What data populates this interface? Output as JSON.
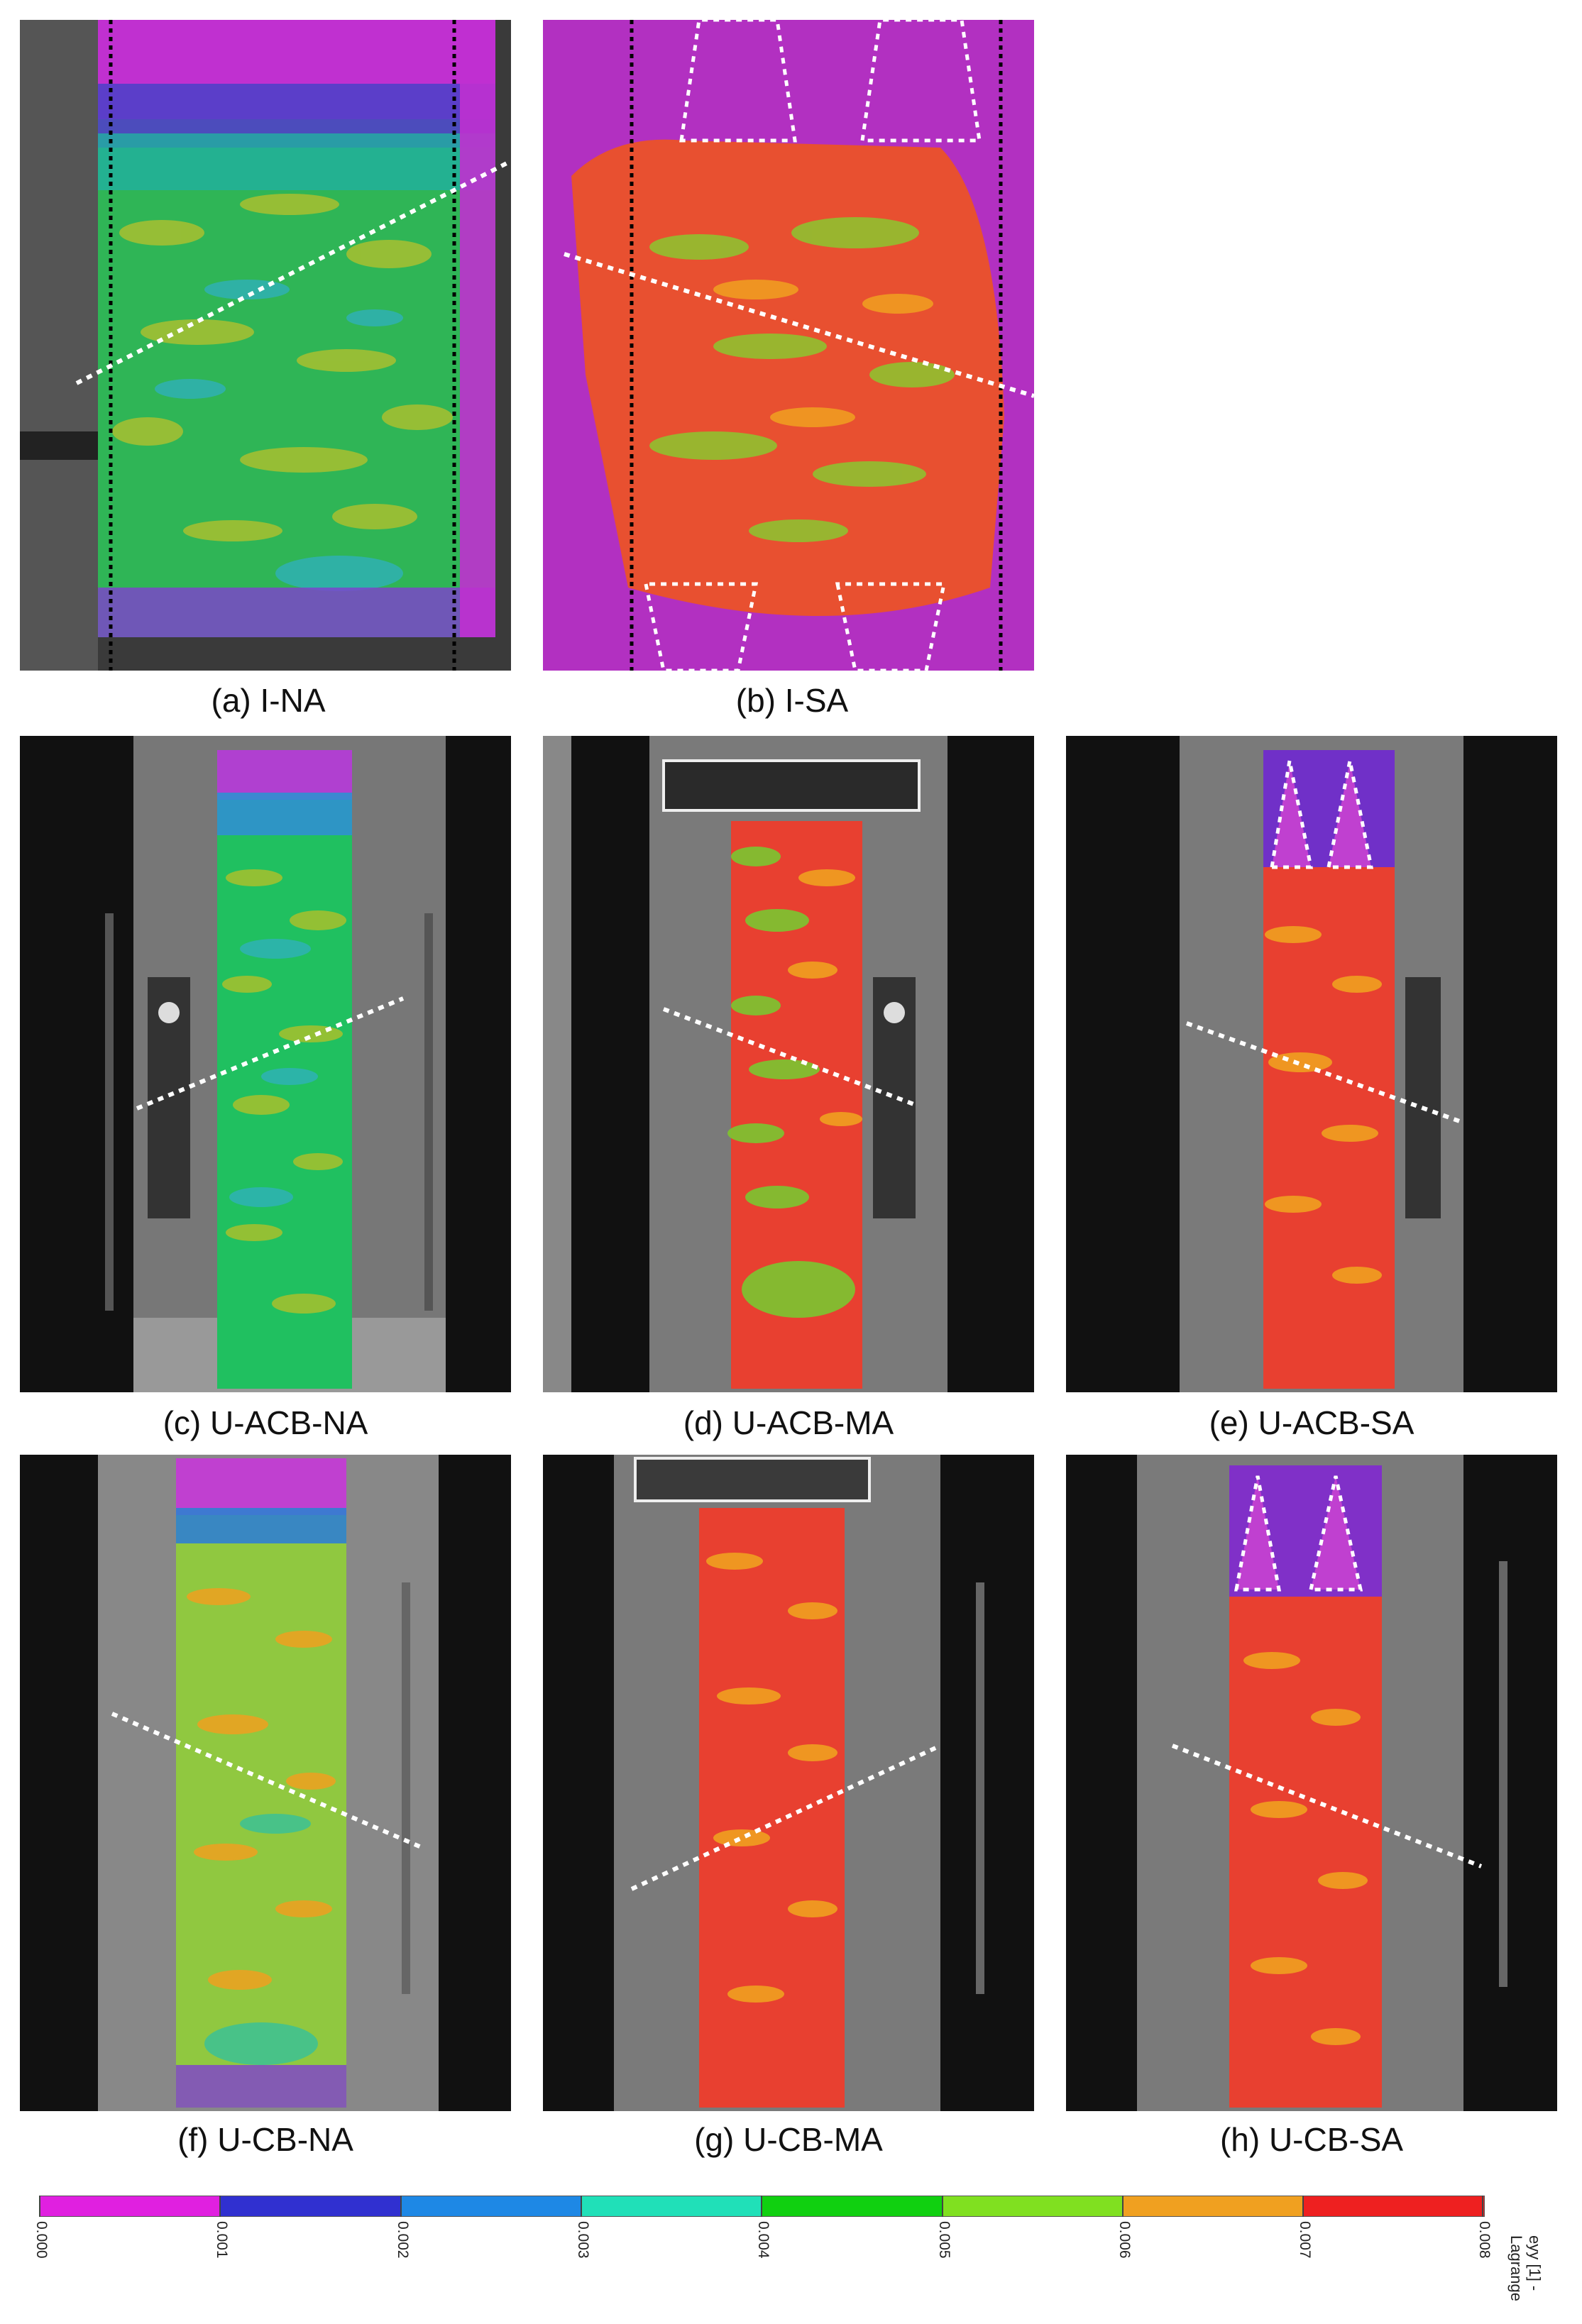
{
  "captions": {
    "a": "(a) I-NA",
    "b": "(b) I-SA",
    "c": "(c) U-ACB-NA",
    "d": "(d) U-ACB-MA",
    "e": "(e) U-ACB-SA",
    "f": "(f) U-CB-NA",
    "g": "(g) U-CB-MA",
    "h": "(h) U-CB-SA"
  },
  "colorbar": {
    "ticks": [
      "0.000",
      "0.001",
      "0.002",
      "0.003",
      "0.004",
      "0.005",
      "0.006",
      "0.007",
      "0.008"
    ],
    "colors": [
      "#e020e0",
      "#3030d0",
      "#1e88e5",
      "#20e0b8",
      "#10d010",
      "#80e020",
      "#f0a020",
      "#ee2020"
    ],
    "label_line1": "eyy [1] -",
    "label_line2": "Lagrange"
  }
}
